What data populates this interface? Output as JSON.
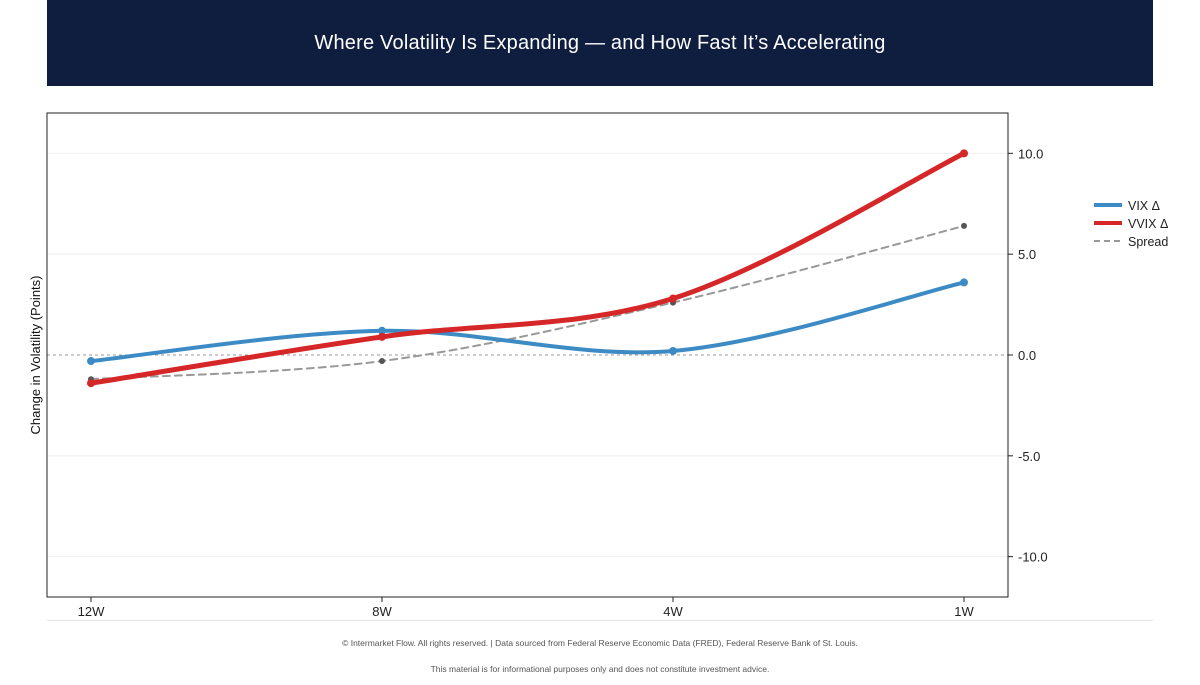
{
  "header": {
    "title": "Where Volatility Is Expanding — and How Fast It’s Accelerating"
  },
  "chart_data": {
    "type": "line",
    "title": "Where Volatility Is Expanding — and How Fast It’s Accelerating",
    "xlabel": "",
    "ylabel": "Change in Volatility (Points)",
    "categories": [
      "12W",
      "8W",
      "4W",
      "1W"
    ],
    "ylim": [
      -12,
      12
    ],
    "yticks": [
      -10,
      -5,
      0,
      5,
      10
    ],
    "ytick_labels": [
      "-10.0",
      "-5.0",
      "0.0",
      "5.0",
      "10.0"
    ],
    "y_axis_side": "right",
    "zero_line": true,
    "grid": "horizontal",
    "legend_position": "right",
    "series": [
      {
        "name": "VIX Δ",
        "values": [
          -0.3,
          1.2,
          0.2,
          3.6
        ],
        "color": "#3d8bc4",
        "style": "solid"
      },
      {
        "name": "VVIX Δ",
        "values": [
          -1.4,
          0.9,
          2.8,
          10.0
        ],
        "color": "#d62728",
        "style": "solid"
      },
      {
        "name": "Spread",
        "values": [
          -1.2,
          -0.3,
          2.6,
          6.4
        ],
        "color": "#999999",
        "style": "dashed"
      }
    ]
  },
  "footer": {
    "line1": "© Intermarket Flow. All rights reserved.  |  Data sourced from Federal Reserve Economic Data (FRED), Federal Reserve Bank of St. Louis.",
    "line2": "This material is for informational purposes only and does not constitute investment advice."
  }
}
